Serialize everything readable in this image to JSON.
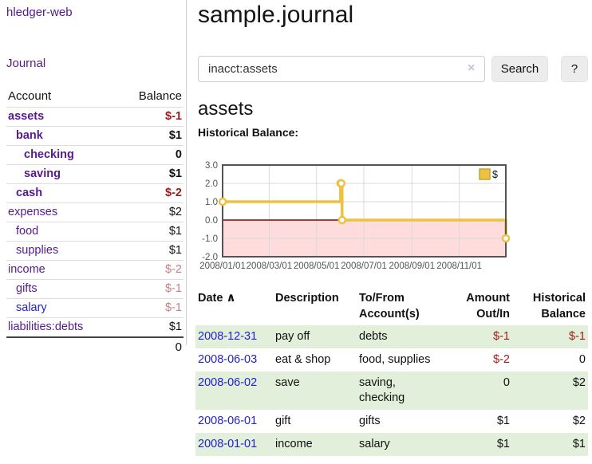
{
  "sidebar": {
    "brand": "hledger-web",
    "nav_journal": "Journal",
    "accounts": {
      "header_account": "Account",
      "header_balance": "Balance",
      "rows": [
        {
          "account": "assets",
          "balance": "$-1",
          "indent": 1,
          "bold": true,
          "balance_class": "neg"
        },
        {
          "account": "bank",
          "balance": "$1",
          "indent": 2,
          "bold": true,
          "balance_class": ""
        },
        {
          "account": "checking",
          "balance": "0",
          "indent": 3,
          "bold": true,
          "balance_class": ""
        },
        {
          "account": "saving",
          "balance": "$1",
          "indent": 3,
          "bold": true,
          "balance_class": ""
        },
        {
          "account": "cash",
          "balance": "$-2",
          "indent": 2,
          "bold": true,
          "balance_class": "neg"
        },
        {
          "account": "expenses",
          "balance": "$2",
          "indent": 1,
          "bold": false,
          "balance_class": ""
        },
        {
          "account": "food",
          "balance": "$1",
          "indent": 2,
          "bold": false,
          "balance_class": ""
        },
        {
          "account": "supplies",
          "balance": "$1",
          "indent": 2,
          "bold": false,
          "balance_class": ""
        },
        {
          "account": "income",
          "balance": "$-2",
          "indent": 1,
          "bold": false,
          "balance_class": "muted"
        },
        {
          "account": "gifts",
          "balance": "$-1",
          "indent": 2,
          "bold": false,
          "balance_class": "muted"
        },
        {
          "account": "salary",
          "balance": "$-1",
          "indent": 2,
          "bold": false,
          "balance_class": "muted",
          "link_class": "blue"
        },
        {
          "account": "liabilities:debts",
          "balance": "$1",
          "indent": 1,
          "bold": false,
          "balance_class": ""
        }
      ],
      "total": "0"
    }
  },
  "header": {
    "title": "sample.journal"
  },
  "search": {
    "value": "inacct:assets",
    "clear_icon": "×",
    "button_label": "Search",
    "help_label": "?"
  },
  "account_page": {
    "heading": "assets",
    "chart_title": "Historical Balance:"
  },
  "chart_data": {
    "type": "line",
    "step": true,
    "title": "Historical Balance",
    "series": [
      {
        "name": "$",
        "color": "#edc240",
        "points": [
          [
            "2008-01-01",
            1
          ],
          [
            "2008-06-01",
            2
          ],
          [
            "2008-06-02",
            2
          ],
          [
            "2008-06-03",
            0
          ],
          [
            "2008-12-31",
            -1
          ]
        ]
      }
    ],
    "xrange": [
      "2008-01-01",
      "2008-12-31"
    ],
    "ylim": [
      -2,
      3
    ],
    "yticks": [
      3,
      2,
      1,
      0,
      -1,
      -2
    ],
    "ytick_labels": [
      "3.0",
      "2.0",
      "1.0",
      "0.0",
      "-1.0",
      "-2.0"
    ],
    "xticks": [
      "2008-01-01",
      "2008-03-01",
      "2008-05-01",
      "2008-07-01",
      "2008-09-01",
      "2008-11-01"
    ],
    "xtick_labels": [
      "2008/01/01",
      "2008/03/01",
      "2008/05/01",
      "2008/07/01",
      "2008/09/01",
      "2008/11/01"
    ],
    "legend": {
      "label": "$",
      "position": "top-right"
    },
    "grid": true,
    "negative_fill": "#ffdcdc",
    "zero_line_color": "#8b0000",
    "border_color": "#545454",
    "grid_color": "#d9d9d9"
  },
  "register": {
    "headers": {
      "date": "Date",
      "sort_icon": "∧",
      "description": "Description",
      "accounts": "To/From Account(s)",
      "amount": "Amount Out/In",
      "balance": "Historical Balance"
    },
    "rows": [
      {
        "date": "2008-12-31",
        "description": "pay off",
        "accounts": "debts",
        "amount": "$-1",
        "balance": "$-1"
      },
      {
        "date": "2008-06-03",
        "description": "eat & shop",
        "accounts": "food, supplies",
        "amount": "$-2",
        "balance": "0"
      },
      {
        "date": "2008-06-02",
        "description": "save",
        "accounts": "saving, checking",
        "amount": "0",
        "balance": "$2"
      },
      {
        "date": "2008-06-01",
        "description": "gift",
        "accounts": "gifts",
        "amount": "$1",
        "balance": "$2"
      },
      {
        "date": "2008-01-01",
        "description": "income",
        "accounts": "salary",
        "amount": "$1",
        "balance": "$1"
      }
    ]
  },
  "colors": {
    "link_purple": "#551a8b",
    "link_blue": "#2222cc",
    "negative_red": "#9c1b1f",
    "muted_rose": "#bf8184",
    "row_green": "#e2efda",
    "chart_line": "#edc240"
  }
}
